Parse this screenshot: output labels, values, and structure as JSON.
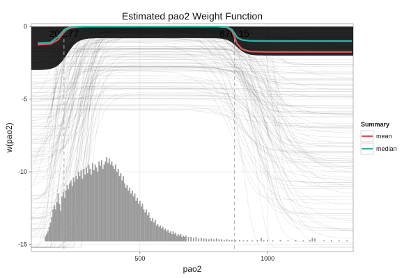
{
  "chart_data": {
    "type": "line",
    "title": "Estimated pao2 Weight Function",
    "xlabel": "pao2",
    "ylabel": "w(pao2)",
    "xlim": [
      75,
      1335
    ],
    "ylim": [
      -15.5,
      0.2
    ],
    "x_ticks": [
      500,
      1000
    ],
    "y_ticks": [
      0,
      -5,
      -10,
      -15
    ],
    "grid": true,
    "legend": {
      "title": "Summary",
      "position": "right",
      "entries": [
        {
          "label": "mean",
          "color": "#d9585a"
        },
        {
          "label": "median",
          "color": "#2fb3a6"
        }
      ]
    },
    "annotations": [
      {
        "text": "202.77",
        "x": 202.77
      },
      {
        "text": "870.15",
        "x": 870.15
      }
    ],
    "series": [
      {
        "name": "mean",
        "color": "#d9585a",
        "x": [
          100,
          150,
          180,
          200,
          210,
          230,
          260,
          300,
          800,
          840,
          860,
          870,
          880,
          900,
          930,
          1000,
          1330
        ],
        "y": [
          -1.25,
          -1.2,
          -0.9,
          -0.45,
          -0.25,
          -0.08,
          -0.02,
          0,
          0,
          -0.05,
          -0.3,
          -0.7,
          -1.2,
          -1.55,
          -1.72,
          -1.75,
          -1.75
        ]
      },
      {
        "name": "median",
        "color": "#2fb3a6",
        "x": [
          100,
          150,
          180,
          200,
          210,
          230,
          260,
          300,
          800,
          840,
          860,
          870,
          880,
          900,
          930,
          1000,
          1330
        ],
        "y": [
          -1.15,
          -1.1,
          -0.7,
          -0.3,
          -0.15,
          -0.04,
          -0.01,
          0,
          0,
          -0.03,
          -0.2,
          -0.45,
          -0.75,
          -0.92,
          -0.98,
          -1.0,
          -1.0
        ]
      }
    ],
    "histogram": {
      "baseline": -14.8,
      "bins": [
        {
          "x": 130,
          "h": 0.35
        },
        {
          "x": 135,
          "h": 0.5
        },
        {
          "x": 140,
          "h": 0.7
        },
        {
          "x": 145,
          "h": 1.0
        },
        {
          "x": 150,
          "h": 1.3
        },
        {
          "x": 155,
          "h": 1.7
        },
        {
          "x": 160,
          "h": 2.2
        },
        {
          "x": 165,
          "h": 2.5
        },
        {
          "x": 170,
          "h": 2.2
        },
        {
          "x": 175,
          "h": 2.7
        },
        {
          "x": 180,
          "h": 3.3
        },
        {
          "x": 185,
          "h": 2.6
        },
        {
          "x": 190,
          "h": 2.1
        },
        {
          "x": 195,
          "h": 3.1
        },
        {
          "x": 200,
          "h": 3.4
        },
        {
          "x": 205,
          "h": 3.0
        },
        {
          "x": 210,
          "h": 3.5
        },
        {
          "x": 215,
          "h": 3.9
        },
        {
          "x": 220,
          "h": 3.6
        },
        {
          "x": 225,
          "h": 4.0
        },
        {
          "x": 230,
          "h": 4.2
        },
        {
          "x": 235,
          "h": 3.8
        },
        {
          "x": 240,
          "h": 4.4
        },
        {
          "x": 245,
          "h": 4.1
        },
        {
          "x": 250,
          "h": 4.5
        },
        {
          "x": 255,
          "h": 4.3
        },
        {
          "x": 260,
          "h": 4.8
        },
        {
          "x": 265,
          "h": 4.5
        },
        {
          "x": 270,
          "h": 4.9
        },
        {
          "x": 275,
          "h": 4.3
        },
        {
          "x": 280,
          "h": 5.0
        },
        {
          "x": 285,
          "h": 4.6
        },
        {
          "x": 290,
          "h": 5.1
        },
        {
          "x": 295,
          "h": 4.7
        },
        {
          "x": 300,
          "h": 5.3
        },
        {
          "x": 305,
          "h": 5.0
        },
        {
          "x": 310,
          "h": 4.6
        },
        {
          "x": 315,
          "h": 5.4
        },
        {
          "x": 320,
          "h": 4.9
        },
        {
          "x": 325,
          "h": 5.3
        },
        {
          "x": 330,
          "h": 5.1
        },
        {
          "x": 335,
          "h": 4.8
        },
        {
          "x": 340,
          "h": 5.5
        },
        {
          "x": 345,
          "h": 5.2
        },
        {
          "x": 350,
          "h": 5.6
        },
        {
          "x": 355,
          "h": 5.0
        },
        {
          "x": 360,
          "h": 5.3
        },
        {
          "x": 365,
          "h": 5.5
        },
        {
          "x": 370,
          "h": 5.8
        },
        {
          "x": 375,
          "h": 5.4
        },
        {
          "x": 380,
          "h": 5.7
        },
        {
          "x": 385,
          "h": 5.3
        },
        {
          "x": 390,
          "h": 5.5
        },
        {
          "x": 395,
          "h": 5.2
        },
        {
          "x": 400,
          "h": 5.0
        },
        {
          "x": 405,
          "h": 5.3
        },
        {
          "x": 410,
          "h": 4.8
        },
        {
          "x": 415,
          "h": 5.0
        },
        {
          "x": 420,
          "h": 4.5
        },
        {
          "x": 425,
          "h": 4.7
        },
        {
          "x": 430,
          "h": 4.2
        },
        {
          "x": 435,
          "h": 4.5
        },
        {
          "x": 440,
          "h": 4.0
        },
        {
          "x": 445,
          "h": 3.7
        },
        {
          "x": 450,
          "h": 3.9
        },
        {
          "x": 455,
          "h": 3.5
        },
        {
          "x": 460,
          "h": 3.7
        },
        {
          "x": 465,
          "h": 3.3
        },
        {
          "x": 470,
          "h": 3.5
        },
        {
          "x": 475,
          "h": 3.1
        },
        {
          "x": 480,
          "h": 3.3
        },
        {
          "x": 485,
          "h": 2.8
        },
        {
          "x": 490,
          "h": 3.0
        },
        {
          "x": 495,
          "h": 2.6
        },
        {
          "x": 500,
          "h": 2.8
        },
        {
          "x": 505,
          "h": 2.4
        },
        {
          "x": 510,
          "h": 2.6
        },
        {
          "x": 515,
          "h": 2.2
        },
        {
          "x": 520,
          "h": 2.0
        },
        {
          "x": 525,
          "h": 2.2
        },
        {
          "x": 530,
          "h": 1.8
        },
        {
          "x": 535,
          "h": 2.0
        },
        {
          "x": 540,
          "h": 1.6
        },
        {
          "x": 545,
          "h": 1.4
        },
        {
          "x": 550,
          "h": 1.6
        },
        {
          "x": 555,
          "h": 1.3
        },
        {
          "x": 560,
          "h": 1.5
        },
        {
          "x": 565,
          "h": 1.1
        },
        {
          "x": 570,
          "h": 1.2
        },
        {
          "x": 575,
          "h": 1.0
        },
        {
          "x": 580,
          "h": 1.1
        },
        {
          "x": 585,
          "h": 0.9
        },
        {
          "x": 590,
          "h": 1.0
        },
        {
          "x": 595,
          "h": 0.8
        },
        {
          "x": 600,
          "h": 0.9
        },
        {
          "x": 605,
          "h": 0.7
        },
        {
          "x": 610,
          "h": 0.8
        },
        {
          "x": 615,
          "h": 0.6
        },
        {
          "x": 620,
          "h": 0.7
        },
        {
          "x": 625,
          "h": 0.5
        },
        {
          "x": 630,
          "h": 0.7
        },
        {
          "x": 635,
          "h": 0.5
        },
        {
          "x": 640,
          "h": 0.6
        },
        {
          "x": 645,
          "h": 0.4
        },
        {
          "x": 650,
          "h": 0.5
        },
        {
          "x": 655,
          "h": 0.4
        },
        {
          "x": 660,
          "h": 0.5
        },
        {
          "x": 665,
          "h": 0.3
        },
        {
          "x": 670,
          "h": 0.4
        },
        {
          "x": 675,
          "h": 0.3
        },
        {
          "x": 680,
          "h": 0.4
        },
        {
          "x": 690,
          "h": 0.3
        },
        {
          "x": 700,
          "h": 0.3
        },
        {
          "x": 710,
          "h": 0.25
        },
        {
          "x": 720,
          "h": 0.3
        },
        {
          "x": 730,
          "h": 0.2
        },
        {
          "x": 740,
          "h": 0.25
        },
        {
          "x": 750,
          "h": 0.2
        },
        {
          "x": 760,
          "h": 0.2
        },
        {
          "x": 770,
          "h": 0.15
        },
        {
          "x": 780,
          "h": 0.2
        },
        {
          "x": 790,
          "h": 0.15
        },
        {
          "x": 800,
          "h": 0.2
        },
        {
          "x": 810,
          "h": 0.15
        },
        {
          "x": 820,
          "h": 0.15
        },
        {
          "x": 830,
          "h": 0.1
        },
        {
          "x": 840,
          "h": 0.15
        },
        {
          "x": 850,
          "h": 0.1
        },
        {
          "x": 860,
          "h": 0.12
        },
        {
          "x": 875,
          "h": 0.1
        },
        {
          "x": 890,
          "h": 0.1
        },
        {
          "x": 905,
          "h": 0.08
        },
        {
          "x": 920,
          "h": 0.1
        },
        {
          "x": 940,
          "h": 0.08
        },
        {
          "x": 960,
          "h": 0.1
        },
        {
          "x": 975,
          "h": 0.25
        },
        {
          "x": 985,
          "h": 0.1
        },
        {
          "x": 1000,
          "h": 0.12
        },
        {
          "x": 1020,
          "h": 0.08
        },
        {
          "x": 1050,
          "h": 0.1
        },
        {
          "x": 1080,
          "h": 0.08
        },
        {
          "x": 1110,
          "h": 0.1
        },
        {
          "x": 1140,
          "h": 0.08
        },
        {
          "x": 1165,
          "h": 0.1
        },
        {
          "x": 1175,
          "h": 0.25
        },
        {
          "x": 1185,
          "h": 0.2
        },
        {
          "x": 1220,
          "h": 0.08
        },
        {
          "x": 1250,
          "h": 0.1
        },
        {
          "x": 1280,
          "h": 0.08
        },
        {
          "x": 1310,
          "h": 0.08
        }
      ]
    }
  }
}
